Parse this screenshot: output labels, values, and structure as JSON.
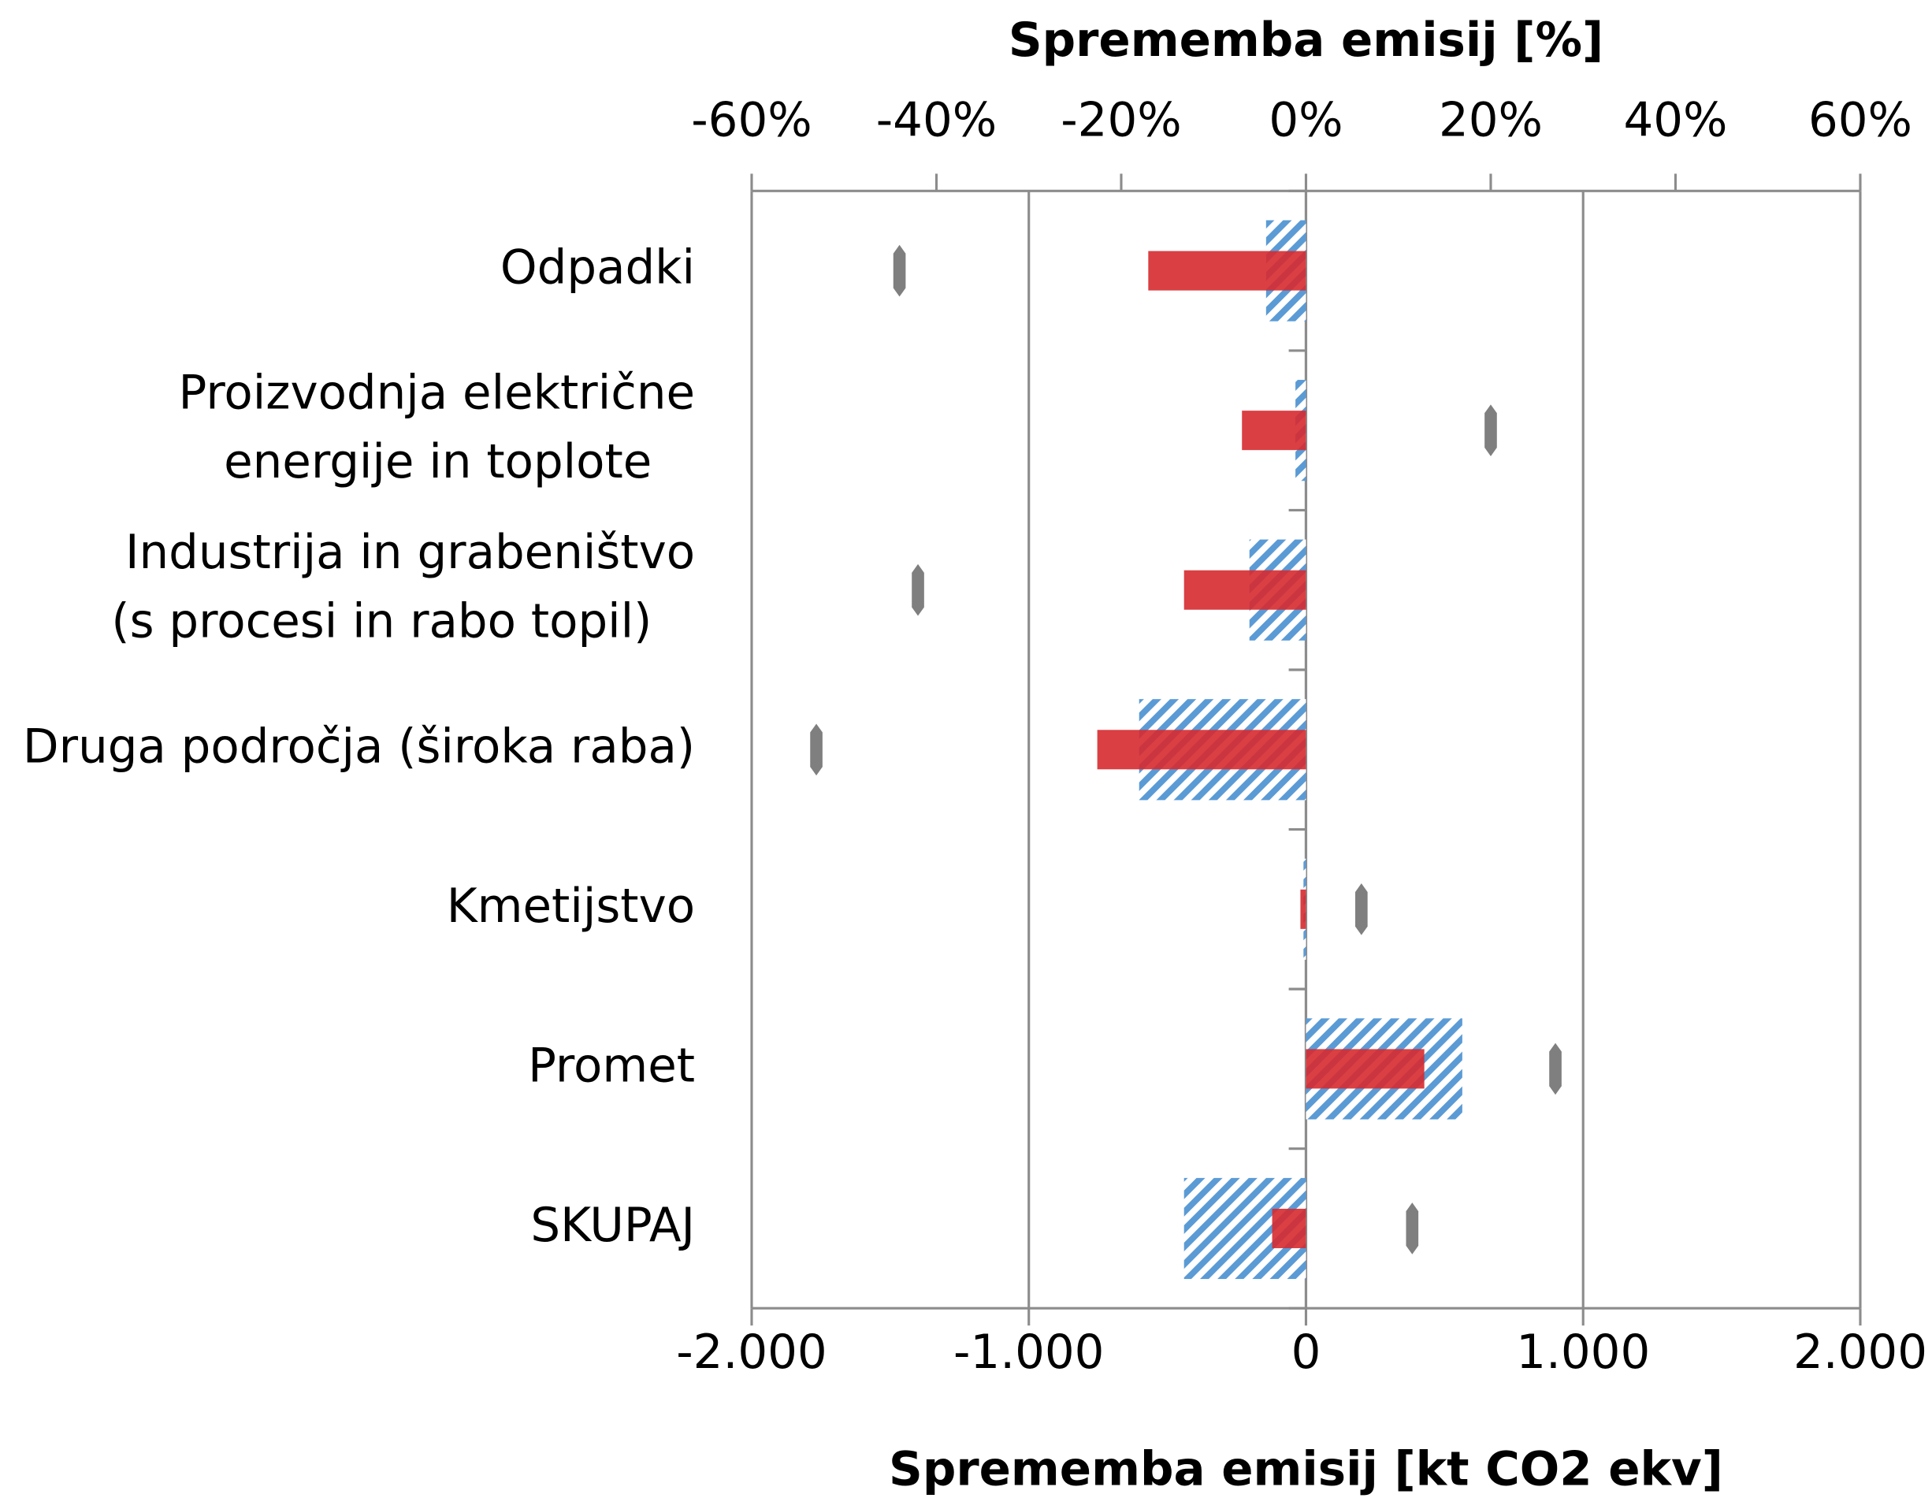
{
  "chart_data": {
    "type": "bar",
    "orientation": "horizontal",
    "title": "Sprememba emisij [%]",
    "xlabel": "Sprememba emisij [kt CO2 ekv]",
    "categories": [
      "Odpadki",
      "Proizvodnja električne\nenergije in toplote",
      "Industrija in grabeništvo\n(s procesi in rabo topil)",
      "Druga področja (široka raba)",
      "Kmetijstvo",
      "Promet",
      "SKUPAJ"
    ],
    "xlim": [
      -2000,
      2000
    ],
    "xticks": [
      {
        "value": -2000,
        "label": "-2.000"
      },
      {
        "value": -1000,
        "label": "-1.000"
      },
      0,
      {
        "value": 1000,
        "label": "1.000"
      },
      {
        "value": 2000,
        "label": "2.000"
      }
    ],
    "x2lim": [
      -60,
      60
    ],
    "x2ticks": [
      {
        "value": -60,
        "label": "-60%"
      },
      {
        "value": -40,
        "label": "-40%"
      },
      {
        "value": -20,
        "label": "-20%"
      },
      {
        "value": 0,
        "label": "0%"
      },
      {
        "value": 20,
        "label": "20%"
      },
      {
        "value": 40,
        "label": "40%"
      },
      {
        "value": 60,
        "label": "60%"
      }
    ],
    "grid": true,
    "series": [
      {
        "color": "#5b9bd5",
        "pattern": "hatch",
        "values": [
          -144,
          -38,
          -204,
          -602,
          -9,
          564,
          -440
        ]
      },
      {
        "color": "#d62a2f",
        "values": [
          -569,
          -231,
          -440,
          -753,
          -20,
          427,
          -122
        ]
      },
      {
        "color": "#7f7f7f",
        "marker": "diamond",
        "axis": "x2",
        "values": [
          -44,
          20,
          -42,
          -53,
          6,
          27,
          11.5
        ]
      }
    ]
  }
}
